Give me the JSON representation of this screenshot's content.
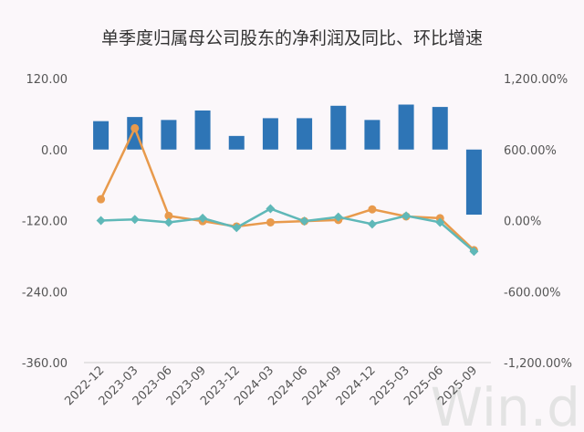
{
  "chart_data": {
    "type": "bar",
    "title": "单季度归属母公司股东的净利润及同比、环比增速",
    "categories": [
      "2022-12",
      "2023-03",
      "2023-06",
      "2023-09",
      "2023-12",
      "2024-03",
      "2024-06",
      "2024-09",
      "2024-12",
      "2025-03",
      "2025-06",
      "2025-09"
    ],
    "ylim": [
      -360,
      120
    ],
    "y2lim": [
      -1200,
      1200
    ],
    "yticks": [
      "120.00",
      "0.00",
      "-120.00",
      "-240.00",
      "-360.00"
    ],
    "y2ticks": [
      "1,200.00%",
      "600.00%",
      "0.00%",
      "-600.00%",
      "-1,200.00%"
    ],
    "series": [
      {
        "kind": "bar",
        "axis": "left",
        "color": "#2e75b6",
        "values": [
          48,
          55,
          50,
          66,
          23,
          53,
          53,
          74,
          50,
          76,
          72,
          -110
        ]
      },
      {
        "kind": "line",
        "axis": "right",
        "color": "#e89a4c",
        "marker": "circle",
        "values": [
          180,
          780,
          40,
          -5,
          -50,
          -15,
          -5,
          5,
          95,
          35,
          20,
          -250
        ]
      },
      {
        "kind": "line",
        "axis": "right",
        "color": "#5fb8b8",
        "marker": "diamond",
        "values": [
          0,
          10,
          -15,
          20,
          -60,
          100,
          -5,
          30,
          -30,
          40,
          -15,
          -260
        ]
      }
    ],
    "legend": "none",
    "grid": false
  },
  "watermark": "Win.d"
}
